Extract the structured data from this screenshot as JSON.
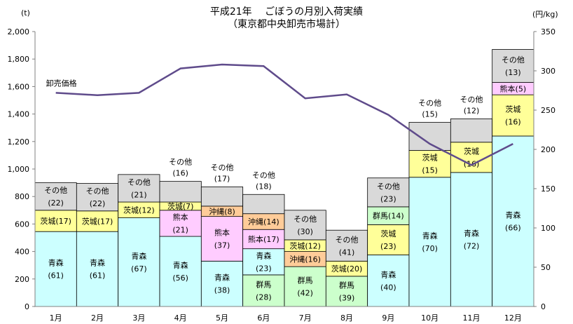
{
  "chart_data": {
    "type": "bar",
    "stacked": true,
    "title": "平成21年　 ごぼうの月別入荷実績",
    "subtitle": "（東京都中央卸売市場計）",
    "left_unit": "(t)",
    "right_unit": "(円/kg)",
    "categories": [
      "1月",
      "2月",
      "3月",
      "4月",
      "5月",
      "6月",
      "7月",
      "8月",
      "9月",
      "10月",
      "11月",
      "12月"
    ],
    "ylim_left": [
      0,
      2000
    ],
    "yticks_left": [
      "0",
      "200",
      "400",
      "600",
      "800",
      "1,000",
      "1,200",
      "1,400",
      "1,600",
      "1,800",
      "2,000"
    ],
    "ylim_right": [
      0,
      350
    ],
    "yticks_right": [
      "0",
      "50",
      "100",
      "150",
      "200",
      "250",
      "300",
      "350"
    ],
    "colors": {
      "青森": "#ccffff",
      "群馬": "#ccffcc",
      "沖縄": "#ffcc99",
      "熊本": "#ffccff",
      "茨城": "#ffff99",
      "その他": "#d9d9d9",
      "line": "#5f4b8b"
    },
    "stacks": [
      [
        {
          "name": "青森",
          "value": 545,
          "label": "青森\n(61)"
        },
        {
          "name": "茨城",
          "value": 155,
          "label": "茨城(17)"
        },
        {
          "name": "その他",
          "value": 200,
          "label": "その他\n(22)"
        }
      ],
      [
        {
          "name": "青森",
          "value": 545,
          "label": "青森\n(61)"
        },
        {
          "name": "茨城",
          "value": 150,
          "label": "茨城(17)"
        },
        {
          "name": "その他",
          "value": 200,
          "label": "その他\n(22)"
        }
      ],
      [
        {
          "name": "青森",
          "value": 645,
          "label": "青森\n(67)"
        },
        {
          "name": "茨城",
          "value": 115,
          "label": "茨城(12)"
        },
        {
          "name": "その他",
          "value": 200,
          "label": "その他\n(21)"
        }
      ],
      [
        {
          "name": "青森",
          "value": 510,
          "label": "青森\n(56)"
        },
        {
          "name": "熊本",
          "value": 190,
          "label": "熊本\n(21)"
        },
        {
          "name": "茨城",
          "value": 60,
          "label": "茨城(7)"
        },
        {
          "name": "その他",
          "value": 150,
          "label": "その他\n(16)",
          "label_above": true
        }
      ],
      [
        {
          "name": "青森",
          "value": 330,
          "label": "青森\n(38)"
        },
        {
          "name": "熊本",
          "value": 325,
          "label": "熊本\n(37)"
        },
        {
          "name": "沖縄",
          "value": 75,
          "label": "沖縄(8)"
        },
        {
          "name": "その他",
          "value": 140,
          "label": "その他\n(17)",
          "label_above": true
        }
      ],
      [
        {
          "name": "群馬",
          "value": 230,
          "label": "群馬\n(28)"
        },
        {
          "name": "青森",
          "value": 190,
          "label": "青森\n(23)"
        },
        {
          "name": "熊本",
          "value": 140,
          "label": "熊本(17)"
        },
        {
          "name": "沖縄",
          "value": 115,
          "label": "沖縄(14)"
        },
        {
          "name": "その他",
          "value": 140,
          "label": "その他\n(18)",
          "label_above": true
        }
      ],
      [
        {
          "name": "群馬",
          "value": 290,
          "label": "群馬\n(42)"
        },
        {
          "name": "沖縄",
          "value": 110,
          "label": "沖縄(16)"
        },
        {
          "name": "茨城",
          "value": 85,
          "label": "茨城(12)"
        },
        {
          "name": "その他",
          "value": 215,
          "label": "その他\n(30)"
        }
      ],
      [
        {
          "name": "群馬",
          "value": 220,
          "label": "群馬\n(39)"
        },
        {
          "name": "茨城",
          "value": 110,
          "label": "茨城(20)"
        },
        {
          "name": "その他",
          "value": 225,
          "label": "その他\n(41)"
        }
      ],
      [
        {
          "name": "青森",
          "value": 375,
          "label": "青森\n(40)"
        },
        {
          "name": "茨城",
          "value": 220,
          "label": "茨城\n(23)"
        },
        {
          "name": "群馬",
          "value": 130,
          "label": "群馬(14)"
        },
        {
          "name": "その他",
          "value": 210,
          "label": "その他\n(23)"
        }
      ],
      [
        {
          "name": "青森",
          "value": 940,
          "label": "青森\n(70)"
        },
        {
          "name": "茨城",
          "value": 195,
          "label": "茨城\n(15)"
        },
        {
          "name": "その他",
          "value": 205,
          "label": "その他\n(15)",
          "label_above": true
        }
      ],
      [
        {
          "name": "青森",
          "value": 975,
          "label": "青森\n(72)"
        },
        {
          "name": "茨城",
          "value": 220,
          "label": "茨城\n(16)"
        },
        {
          "name": "その他",
          "value": 170,
          "label": "その他\n(12)",
          "label_above": true
        }
      ],
      [
        {
          "name": "青森",
          "value": 1240,
          "label": "青森\n(66)"
        },
        {
          "name": "茨城",
          "value": 300,
          "label": "茨城\n(16)"
        },
        {
          "name": "熊本",
          "value": 90,
          "label": "熊本(5)"
        },
        {
          "name": "その他",
          "value": 240,
          "label": "その他\n(13)"
        }
      ]
    ],
    "line_series": {
      "name": "卸売価格",
      "axis": "right",
      "values": [
        272,
        269,
        272,
        303,
        308,
        306,
        265,
        270,
        244,
        207,
        180,
        207
      ]
    }
  }
}
